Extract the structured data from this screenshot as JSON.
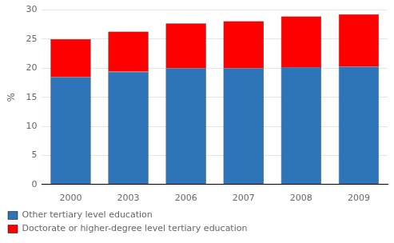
{
  "chart_data": {
    "type": "bar",
    "stacked": true,
    "categories": [
      "2000",
      "2003",
      "2006",
      "2007",
      "2008",
      "2009"
    ],
    "series": [
      {
        "name": "Other tertiary level education",
        "color": "#2E74B8",
        "values": [
          18.5,
          19.4,
          20.0,
          20.0,
          20.2,
          20.3
        ]
      },
      {
        "name": "Doctorate or higher-degree level tertiary education",
        "color": "#FF0000",
        "values": [
          6.5,
          6.9,
          7.7,
          8.1,
          8.7,
          9.0
        ]
      }
    ],
    "ylabel": "%",
    "ylim": [
      0,
      30
    ],
    "yticks": [
      0,
      5,
      10,
      15,
      20,
      25,
      30
    ],
    "grid": true,
    "legend": "bottom"
  }
}
